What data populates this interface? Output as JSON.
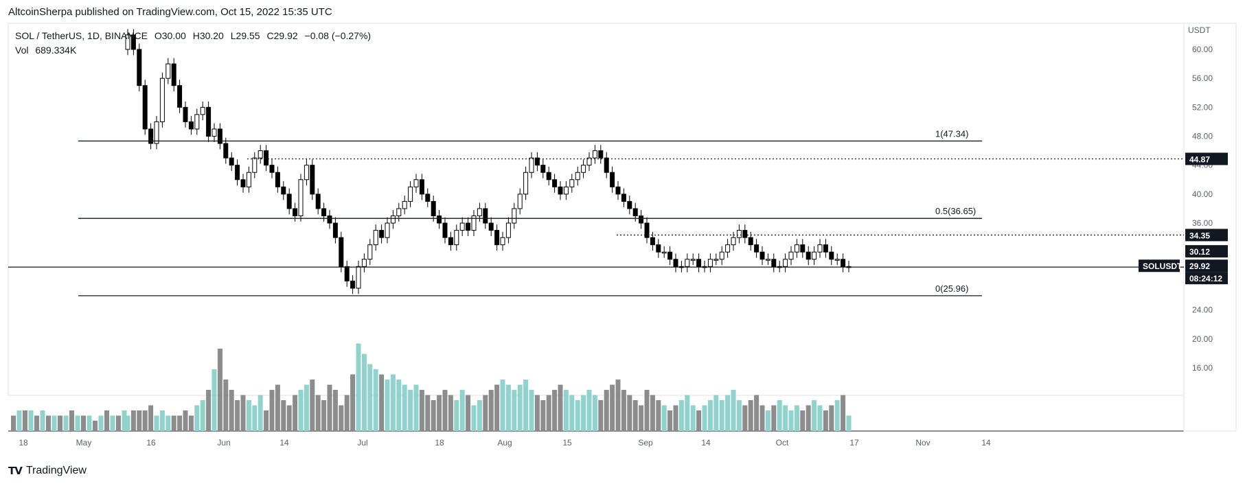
{
  "header": {
    "published_line": "AltcoinSherpa published on TradingView.com, Oct 15, 2022 15:35 UTC"
  },
  "legend": {
    "symbol": "SOL / TetherUS, 1D, BINANCE",
    "open_label": "O",
    "open": "30.00",
    "high_label": "H",
    "high": "30.20",
    "low_label": "L",
    "low": "29.55",
    "close_label": "C",
    "close": "29.92",
    "change": "−0.08 (−0.27%)",
    "volume_label": "Vol",
    "volume": "689.334K"
  },
  "footer": {
    "brand": "TradingView"
  },
  "colors": {
    "up_volume": "#8fd3cc",
    "down_volume": "#8c8c8c",
    "candle_up_fill": "#ffffff",
    "candle_down_fill": "#000000",
    "line": "#131722",
    "axis_text": "#5d606b"
  },
  "chart_data": {
    "type": "candlestick",
    "symbol": "SOLUSDT",
    "timeframe": "1D",
    "price_axis": {
      "unit": "USDT",
      "ticks": [
        "60.00",
        "56.00",
        "52.00",
        "48.00",
        "44.00",
        "40.00",
        "36.00",
        "32.00",
        "28.00",
        "24.00",
        "20.00",
        "16.00"
      ],
      "min": 12.2,
      "max": 63.6
    },
    "time_axis": {
      "labels": [
        "18",
        "May",
        "16",
        "Jun",
        "14",
        "Jul",
        "18",
        "Aug",
        "15",
        "Sep",
        "14",
        "Oct",
        "17",
        "Nov",
        "14"
      ]
    },
    "fib_levels": [
      {
        "label": "1(47.34)",
        "price": 47.34
      },
      {
        "label": "0.5(36.65)",
        "price": 36.65
      },
      {
        "label": "0(25.96)",
        "price": 25.96
      }
    ],
    "horizontal_lines": [
      {
        "price": 44.87,
        "style": "dotted",
        "label": "44.87"
      },
      {
        "price": 34.35,
        "style": "dotted",
        "label": "34.35"
      },
      {
        "price": 29.92,
        "style": "solid",
        "label": ""
      }
    ],
    "price_tags": [
      {
        "text": "44.87",
        "price": 44.87
      },
      {
        "text": "34.35",
        "price": 34.35
      },
      {
        "text": "30.12",
        "price": 32.1
      },
      {
        "text": "SOLUSDT",
        "price": 30.1
      },
      {
        "text": "29.92",
        "price": 30.1
      },
      {
        "text": "08:24:12",
        "price": 28.4
      }
    ],
    "candles_close": [
      62,
      60,
      55,
      49,
      47,
      50,
      56,
      58,
      55,
      52,
      50,
      49,
      51,
      52,
      48,
      49,
      47,
      45,
      44,
      42,
      41,
      43,
      45,
      46,
      44,
      43,
      41,
      40,
      38,
      37,
      42,
      44,
      40,
      38,
      37,
      36,
      34,
      30,
      28,
      27,
      30,
      31,
      33,
      35,
      34,
      36,
      37,
      38,
      39,
      41,
      42,
      40,
      39,
      37,
      36,
      34,
      33,
      35,
      36,
      35,
      37,
      38,
      36,
      35,
      33,
      34,
      36,
      38,
      40,
      43,
      45,
      44,
      43,
      42,
      41,
      40,
      41,
      42,
      43,
      44,
      45,
      46,
      45,
      43,
      41,
      40,
      39,
      38,
      37,
      36,
      34,
      33,
      32,
      32,
      31,
      30,
      30,
      31,
      31,
      30,
      30,
      31,
      31,
      32,
      33,
      34,
      35,
      34,
      33,
      32,
      31,
      31,
      30,
      30,
      31,
      32,
      33,
      32,
      31,
      32,
      33,
      32,
      31,
      31,
      30,
      30
    ],
    "candles_open": [
      60,
      62,
      60,
      55,
      49,
      47,
      50,
      56,
      58,
      55,
      52,
      50,
      49,
      51,
      52,
      48,
      49,
      47,
      45,
      44,
      42,
      41,
      43,
      45,
      46,
      44,
      43,
      41,
      40,
      38,
      37,
      42,
      44,
      40,
      38,
      37,
      36,
      34,
      30,
      28,
      27,
      30,
      31,
      33,
      35,
      34,
      36,
      37,
      38,
      39,
      41,
      42,
      40,
      39,
      37,
      36,
      34,
      33,
      35,
      36,
      35,
      37,
      38,
      36,
      35,
      33,
      34,
      36,
      38,
      40,
      43,
      45,
      44,
      43,
      42,
      41,
      40,
      41,
      42,
      43,
      44,
      45,
      46,
      45,
      43,
      41,
      40,
      39,
      38,
      37,
      36,
      34,
      33,
      32,
      32,
      31,
      30,
      30,
      31,
      31,
      30,
      30,
      31,
      31,
      32,
      33,
      34,
      35,
      34,
      33,
      32,
      31,
      31,
      30,
      30,
      31,
      32,
      33,
      32,
      31,
      32,
      33,
      32,
      31,
      31,
      30
    ],
    "volume": [
      3,
      4,
      4,
      4,
      5,
      3,
      4,
      3,
      3,
      3,
      4,
      3,
      5,
      6,
      8,
      12,
      16,
      10,
      8,
      6,
      7,
      6,
      5,
      7,
      4,
      8,
      9,
      6,
      5,
      7,
      8,
      9,
      10,
      7,
      6,
      9,
      8,
      5,
      7,
      11,
      17,
      15,
      13,
      12,
      11,
      10,
      11,
      10,
      9,
      8,
      9,
      8,
      7,
      6,
      7,
      8,
      7,
      6,
      8,
      7,
      5,
      6,
      7,
      8,
      9,
      10,
      9,
      8,
      9,
      10,
      8,
      7,
      6,
      7,
      8,
      9,
      8,
      7,
      6,
      7,
      8,
      7,
      6,
      8,
      9,
      10,
      8,
      7,
      6,
      5,
      8,
      7,
      6,
      5,
      4,
      5,
      6,
      7,
      5,
      4,
      5,
      6,
      7,
      6,
      7,
      8,
      6,
      5,
      6,
      7,
      5,
      4,
      5,
      6,
      5,
      4,
      5,
      4,
      5,
      6,
      5,
      4,
      5,
      6,
      7,
      3
    ]
  }
}
